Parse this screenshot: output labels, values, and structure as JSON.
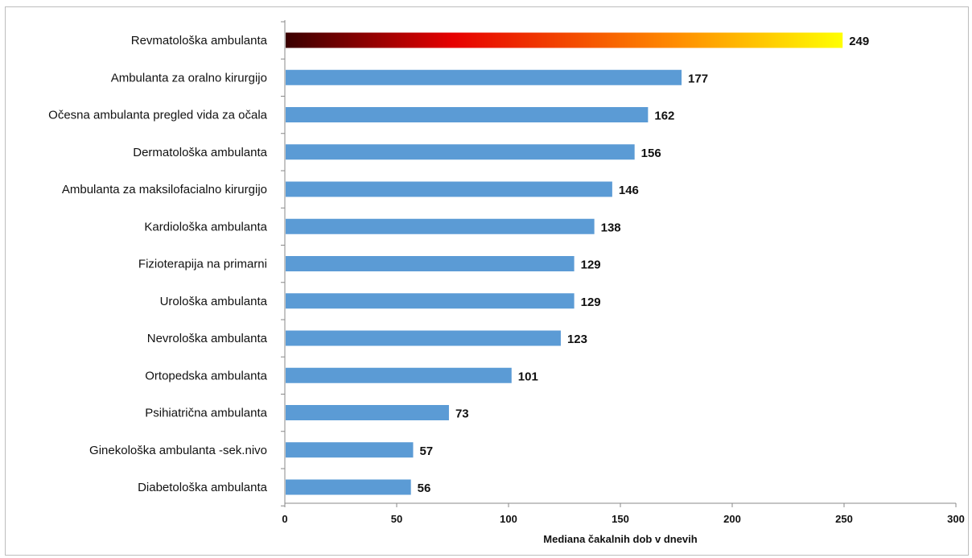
{
  "chart_data": {
    "type": "bar",
    "orientation": "horizontal",
    "title": "",
    "xlabel": "Mediana čakalnih dob v dnevih",
    "ylabel": "",
    "xlim": [
      0,
      300
    ],
    "xticks": [
      0,
      50,
      100,
      150,
      200,
      250,
      300
    ],
    "grid": false,
    "bar_color": "#5b9bd5",
    "highlight_gradient": [
      "#3a0000",
      "#e60000",
      "#ff8c00",
      "#ffff00"
    ],
    "categories": [
      "Revmatološka ambulanta",
      "Ambulanta za oralno kirurgijo",
      "Očesna ambulanta  pregled vida za očala",
      "Dermatološka ambulanta",
      "Ambulanta za maksilofacialno kirurgijo",
      "Kardiološka ambulanta",
      "Fizioterapija na primarni",
      "Urološka ambulanta",
      "Nevrološka ambulanta",
      "Ortopedska ambulanta",
      "Psihiatrična ambulanta",
      "Ginekološka ambulanta -sek.nivo",
      "Diabetološka ambulanta"
    ],
    "values": [
      249,
      177,
      162,
      156,
      146,
      138,
      129,
      129,
      123,
      101,
      73,
      57,
      56
    ],
    "highlight_index": 0
  }
}
